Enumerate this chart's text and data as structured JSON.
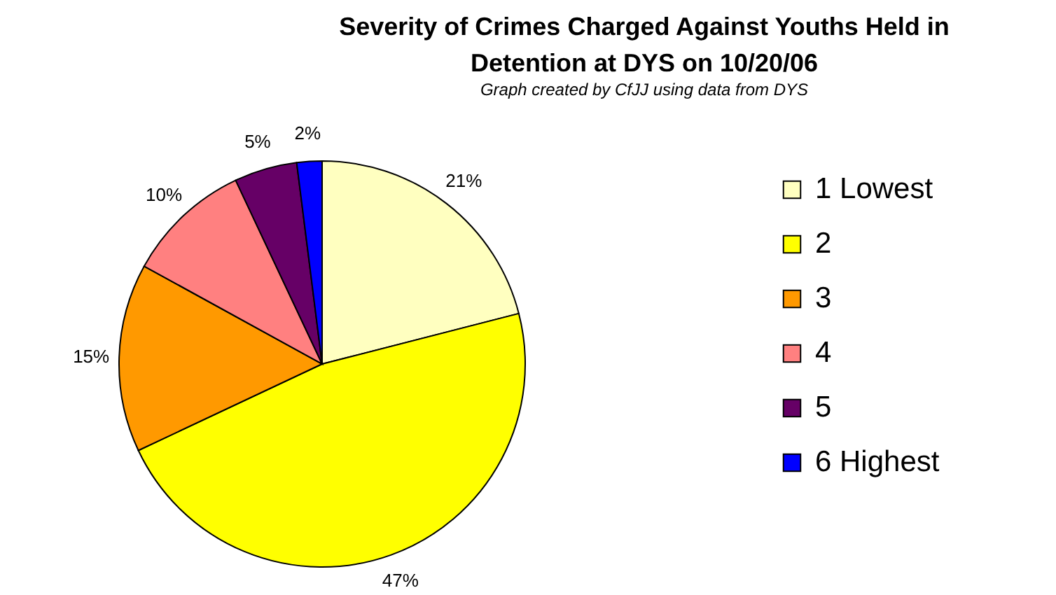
{
  "chart_data": {
    "type": "pie",
    "title": "Severity of Crimes Charged Against Youths Held in\nDetention at DYS on 10/20/06",
    "subtitle": "Graph created by CfJJ using data from DYS",
    "categories": [
      "1 Lowest",
      "2",
      "3",
      "4",
      "5",
      "6 Highest"
    ],
    "values": [
      21,
      47,
      15,
      10,
      5,
      2
    ],
    "colors": [
      "#ffffc0",
      "#ffff00",
      "#ff9900",
      "#ff8080",
      "#660066",
      "#0000ff"
    ],
    "value_labels": [
      "21%",
      "47%",
      "15%",
      "10%",
      "5%",
      "2%"
    ],
    "legend": "right"
  }
}
